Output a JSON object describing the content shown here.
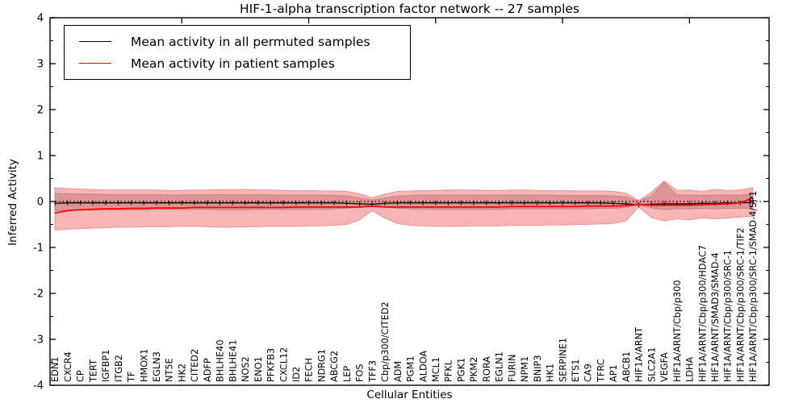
{
  "figure": {
    "title": "HIF-1-alpha transcription factor network -- 27 samples",
    "xlabel": "Cellular Entities",
    "ylabel": "Inferred Activity",
    "legend": [
      {
        "label": "Mean activity in all permuted samples",
        "color": "#000000"
      },
      {
        "label": "Mean activity in patient samples",
        "color": "#ff0000"
      }
    ]
  },
  "chart_data": {
    "type": "line",
    "title": "HIF-1-alpha transcription factor network -- 27 samples",
    "xlabel": "Cellular Entities",
    "ylabel": "Inferred Activity",
    "ylim": [
      -4,
      4
    ],
    "yticks": [
      "4",
      "3",
      "2",
      "1",
      "0",
      "-1",
      "-2",
      "-3",
      "-4"
    ],
    "ytick_values": [
      4,
      3,
      2,
      1,
      0,
      -1,
      -2,
      -3,
      -4
    ],
    "grid": false,
    "legend_position": "upper left",
    "zero_line": 0,
    "zero_line_style": "dotted",
    "x_tick_label_rotation": 90,
    "categories": [
      "EDN1",
      "CXCR4",
      "CP",
      "TERT",
      "IGFBP1",
      "ITGB2",
      "TF",
      "HMOX1",
      "EGLN3",
      "NT5E",
      "HK2",
      "CITED2",
      "ADFP",
      "BHLHE40",
      "BHLHE41",
      "NOS2",
      "ENO1",
      "PFKFB3",
      "CXCL12",
      "ID2",
      "FECH",
      "NDRG1",
      "ABCG2",
      "LEP",
      "FOS",
      "TFF3",
      "Cbp/p300/CITED2",
      "ADM",
      "PGM1",
      "ALDOA",
      "MCL1",
      "PFKL",
      "PGK1",
      "PKM2",
      "RORA",
      "EGLN1",
      "FURIN",
      "NPM1",
      "BNIP3",
      "HK1",
      "SERPINE1",
      "ETS1",
      "CA9",
      "TFRC",
      "AP1",
      "ABCB1",
      "HIF1A/ARNT",
      "SLC2A1",
      "VEGFA",
      "HIF1A/ARNT/Cbp/p300",
      "LDHA",
      "HIF1A/ARNT/Cbp/p300/HDAC7",
      "HIF1A/ARNT/SMAD3/SMAD-4",
      "HIF1A/ARNT/Cbp/p300/SRC-1",
      "HIF1A/ARNT/Cbp/p300/SRC-1/TIF2",
      "HIF1A/ARNT/Cbp/p300/SRC-1/SMAD-4/SP1"
    ],
    "series": [
      {
        "name": "Mean activity in all permuted samples",
        "color": "#000000",
        "values": [
          -0.04,
          -0.03,
          -0.03,
          -0.03,
          -0.03,
          -0.03,
          -0.03,
          -0.03,
          -0.03,
          -0.03,
          -0.03,
          -0.03,
          -0.03,
          -0.03,
          -0.03,
          -0.03,
          -0.03,
          -0.03,
          -0.03,
          -0.03,
          -0.03,
          -0.03,
          -0.03,
          -0.04,
          -0.05,
          -0.06,
          -0.04,
          -0.03,
          -0.03,
          -0.03,
          -0.03,
          -0.03,
          -0.03,
          -0.03,
          -0.03,
          -0.03,
          -0.03,
          -0.03,
          -0.03,
          -0.03,
          -0.03,
          -0.03,
          -0.03,
          -0.03,
          -0.04,
          -0.05,
          -0.07,
          -0.06,
          -0.05,
          -0.05,
          -0.05,
          -0.04,
          -0.04,
          -0.03,
          -0.03,
          -0.02
        ]
      },
      {
        "name": "Mean activity in patient samples",
        "color": "#ff0000",
        "values": [
          -0.25,
          -0.2,
          -0.18,
          -0.17,
          -0.16,
          -0.16,
          -0.15,
          -0.15,
          -0.14,
          -0.14,
          -0.14,
          -0.13,
          -0.13,
          -0.13,
          -0.13,
          -0.13,
          -0.13,
          -0.13,
          -0.13,
          -0.12,
          -0.12,
          -0.12,
          -0.12,
          -0.12,
          -0.12,
          -0.1,
          -0.12,
          -0.12,
          -0.12,
          -0.12,
          -0.12,
          -0.12,
          -0.12,
          -0.12,
          -0.12,
          -0.12,
          -0.11,
          -0.11,
          -0.11,
          -0.11,
          -0.11,
          -0.11,
          -0.1,
          -0.1,
          -0.1,
          -0.09,
          -0.06,
          -0.08,
          -0.08,
          -0.08,
          -0.08,
          -0.07,
          -0.06,
          -0.05,
          -0.03,
          0.08
        ]
      }
    ],
    "bands": [
      {
        "name": "patient-confidence-band",
        "fill": "#f6adad",
        "edge": "#ee9494",
        "upper": [
          0.3,
          0.28,
          0.27,
          0.26,
          0.25,
          0.25,
          0.25,
          0.25,
          0.25,
          0.24,
          0.24,
          0.25,
          0.25,
          0.26,
          0.26,
          0.26,
          0.25,
          0.25,
          0.24,
          0.24,
          0.24,
          0.23,
          0.23,
          0.22,
          0.17,
          0.08,
          0.16,
          0.22,
          0.23,
          0.24,
          0.24,
          0.25,
          0.25,
          0.25,
          0.24,
          0.24,
          0.25,
          0.25,
          0.24,
          0.24,
          0.24,
          0.23,
          0.23,
          0.23,
          0.22,
          0.18,
          0.02,
          0.2,
          0.45,
          0.24,
          0.25,
          0.22,
          0.26,
          0.24,
          0.25,
          0.3
        ],
        "lower": [
          -0.62,
          -0.6,
          -0.59,
          -0.58,
          -0.57,
          -0.56,
          -0.56,
          -0.55,
          -0.55,
          -0.55,
          -0.54,
          -0.54,
          -0.55,
          -0.56,
          -0.56,
          -0.55,
          -0.55,
          -0.54,
          -0.54,
          -0.54,
          -0.53,
          -0.53,
          -0.52,
          -0.5,
          -0.4,
          -0.2,
          -0.36,
          -0.48,
          -0.52,
          -0.53,
          -0.54,
          -0.54,
          -0.54,
          -0.53,
          -0.53,
          -0.53,
          -0.52,
          -0.52,
          -0.52,
          -0.51,
          -0.51,
          -0.5,
          -0.5,
          -0.49,
          -0.48,
          -0.42,
          -0.12,
          -0.35,
          -0.42,
          -0.38,
          -0.4,
          -0.36,
          -0.38,
          -0.36,
          -0.34,
          -0.32
        ]
      },
      {
        "name": "permuted-confidence-band",
        "fill": "#d89090",
        "edge": "#c98484",
        "upper": [
          0.18,
          0.17,
          0.16,
          0.16,
          0.15,
          0.15,
          0.15,
          0.15,
          0.15,
          0.14,
          0.14,
          0.15,
          0.15,
          0.15,
          0.15,
          0.15,
          0.15,
          0.14,
          0.14,
          0.14,
          0.14,
          0.14,
          0.13,
          0.12,
          0.08,
          0.03,
          0.08,
          0.12,
          0.13,
          0.14,
          0.14,
          0.14,
          0.14,
          0.14,
          0.14,
          0.14,
          0.14,
          0.14,
          0.14,
          0.14,
          0.13,
          0.13,
          0.13,
          0.13,
          0.12,
          0.1,
          0.0,
          0.12,
          0.42,
          0.14,
          0.14,
          0.13,
          0.14,
          0.14,
          0.14,
          0.16
        ],
        "lower": [
          -0.2,
          -0.19,
          -0.19,
          -0.18,
          -0.18,
          -0.18,
          -0.18,
          -0.18,
          -0.17,
          -0.17,
          -0.17,
          -0.17,
          -0.17,
          -0.18,
          -0.18,
          -0.18,
          -0.17,
          -0.17,
          -0.17,
          -0.17,
          -0.17,
          -0.17,
          -0.16,
          -0.15,
          -0.12,
          -0.08,
          -0.12,
          -0.15,
          -0.16,
          -0.17,
          -0.17,
          -0.17,
          -0.17,
          -0.17,
          -0.17,
          -0.17,
          -0.16,
          -0.16,
          -0.16,
          -0.16,
          -0.16,
          -0.16,
          -0.16,
          -0.15,
          -0.15,
          -0.13,
          -0.08,
          -0.14,
          -0.18,
          -0.16,
          -0.16,
          -0.15,
          -0.16,
          -0.15,
          -0.15,
          -0.14
        ]
      }
    ]
  }
}
